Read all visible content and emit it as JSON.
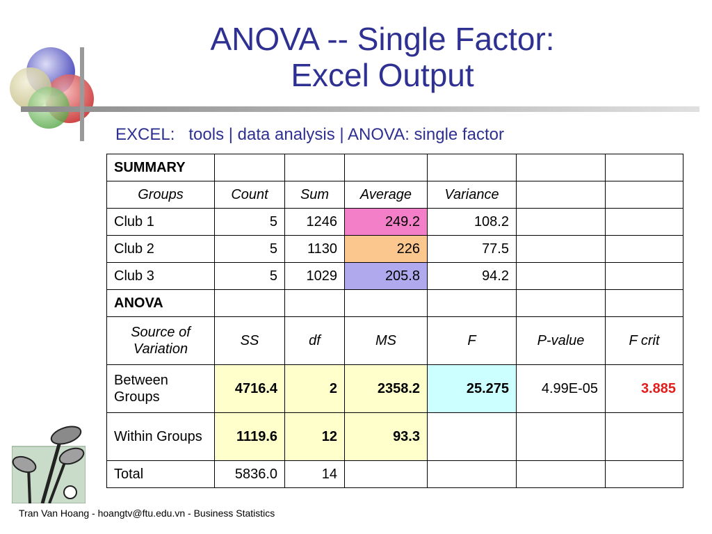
{
  "slide": {
    "title_line1": "ANOVA -- Single Factor:",
    "title_line2": "Excel Output",
    "subtitle": "EXCEL:   tools | data analysis | ANOVA: single factor",
    "footer": "Tran Van Hoang - hoangtv@ftu.edu.vn - Business Statistics"
  },
  "summary": {
    "heading": "SUMMARY",
    "headers": [
      "Groups",
      "Count",
      "Sum",
      "Average",
      "Variance"
    ],
    "rows": [
      {
        "group": "Club 1",
        "count": "5",
        "sum": "1246",
        "average": "249.2",
        "variance": "108.2"
      },
      {
        "group": "Club 2",
        "count": "5",
        "sum": "1130",
        "average": "226",
        "variance": "77.5"
      },
      {
        "group": "Club 3",
        "count": "5",
        "sum": "1029",
        "average": "205.8",
        "variance": "94.2"
      }
    ]
  },
  "anova": {
    "heading": "ANOVA",
    "headers": [
      "Source of Variation",
      "SS",
      "df",
      "MS",
      "F",
      "P-value",
      "F crit"
    ],
    "rows": [
      {
        "source": "Between Groups",
        "ss": "4716.4",
        "df": "2",
        "ms": "2358.2",
        "f": "25.275",
        "p_value": "4.99E-05",
        "f_crit": "3.885"
      },
      {
        "source": "Within Groups",
        "ss": "1119.6",
        "df": "12",
        "ms": "93.3"
      },
      {
        "source": "Total",
        "ss": "5836.0",
        "df": "14"
      }
    ]
  },
  "colors": {
    "title": "#2e3092",
    "club1_average": "#f27fc7",
    "club2_average": "#fbc78f",
    "club3_average": "#b1a9ee",
    "ss_df_ms_highlight": "#ffffcc",
    "f_highlight": "#ccffff",
    "f_crit_text": "#e31c1c"
  },
  "icons": [
    "overlapping-circles-logo-icon",
    "golf-clubs-icon"
  ]
}
